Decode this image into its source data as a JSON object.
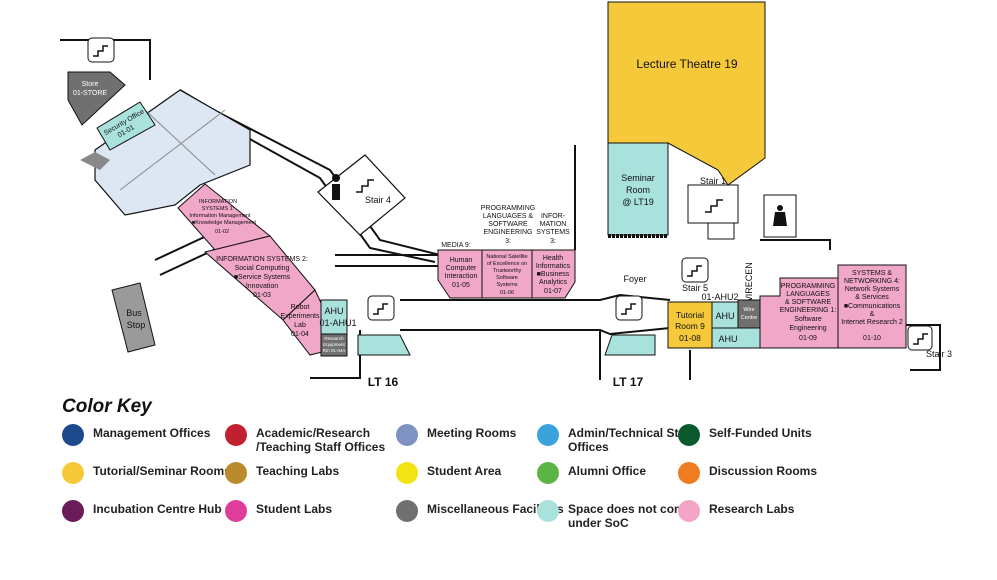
{
  "map": {
    "rooms": {
      "store": [
        "Store",
        "01-STORE"
      ],
      "security": [
        "Security Office",
        "01-01"
      ],
      "is1": [
        "INFORMATION",
        "SYSTEMS 1:",
        "Information Management",
        "■Knowledge Management",
        "01-02"
      ],
      "is2": [
        "INFORMATION SYSTEMS 2:",
        "Social Computing",
        "■Service Systems",
        "Innovation",
        "01-03"
      ],
      "robot": [
        "Robot",
        "Experiments",
        "Lab",
        "01-04"
      ],
      "ahu1": [
        "AHU",
        "01-AHU1"
      ],
      "research_eq": [
        "Research",
        "Equipment",
        "Rm 01-04A"
      ],
      "media9_label": "MEDIA 9:",
      "media9": [
        "Human",
        "Computer",
        "Interaction",
        "01-05"
      ],
      "pl3_label": [
        "PROGRAMMING",
        "LANGUAGES &",
        "SOFTWARE",
        "ENGINEERING",
        "3:"
      ],
      "pl3": [
        "National Satellite",
        "of Excellence on",
        "Trustworthy",
        "Software",
        "Systems",
        "01-06"
      ],
      "is3_label": [
        "INFOR-",
        "MATION",
        "SYSTEMS",
        "3:"
      ],
      "is3": [
        "Health",
        "Informatics",
        "■Business",
        "Analytics",
        "01-07"
      ],
      "lt19": "Lecture Theatre 19",
      "seminar": [
        "Seminar",
        "Room",
        "@ LT19"
      ],
      "foyer": "Foyer",
      "stair1": "Stair 1",
      "stair3": "Stair 3",
      "stair4": "Stair 4",
      "stair5": "Stair 5",
      "ahu2": "01-AHU2",
      "wirecen": "01-WIRECEN",
      "tutorial9": [
        "Tutorial",
        "Room 9",
        "01-08"
      ],
      "ahu_a": "AHU",
      "ahu_b": "AHU",
      "wire_centre": [
        "Wire",
        "Centre"
      ],
      "pl1": [
        "PROGRAMMING",
        "LANGUAGES",
        "& SOFTWARE",
        "ENGINEERING 1:",
        "Software",
        "Engineering",
        "01-09"
      ],
      "sn4": [
        "SYSTEMS &",
        "NETWORKING 4:",
        "Network Systems",
        "& Services",
        "■Communications",
        "&",
        "Internet Research 2",
        "01-10"
      ],
      "bus": [
        "Bus",
        "Stop"
      ],
      "lt16": "LT 16",
      "lt17": "LT 17"
    }
  },
  "legend": {
    "title": "Color Key",
    "items": [
      {
        "label": "Management Offices",
        "color": "#1c4a8c"
      },
      {
        "label": "Academic/Research /Teaching Staff Offices",
        "color": "#c0202f"
      },
      {
        "label": "Meeting Rooms",
        "color": "#7f92c2"
      },
      {
        "label": "Admin/Technical Staff Offices",
        "color": "#3aa3dc"
      },
      {
        "label": "Self-Funded Units",
        "color": "#0b5a2e"
      },
      {
        "label": "Tutorial/Seminar Rooms",
        "color": "#f5c938"
      },
      {
        "label": "Teaching Labs",
        "color": "#b98b2e"
      },
      {
        "label": "Student Area",
        "color": "#f4e314"
      },
      {
        "label": "Alumni Office",
        "color": "#5bb544"
      },
      {
        "label": "Discussion Rooms",
        "color": "#ee7d22"
      },
      {
        "label": "Incubation Centre Hub",
        "color": "#6b1a5b"
      },
      {
        "label": "Student  Labs",
        "color": "#e03c9b"
      },
      {
        "label": "Miscellaneous Facilities",
        "color": "#707070"
      },
      {
        "label": "Space does not come under SoC",
        "color": "#a9e1dc"
      },
      {
        "label": "Research Labs",
        "color": "#f4a5c6"
      }
    ]
  },
  "colors": {
    "pink": "#f1a7c7",
    "teal": "#a9e1dc",
    "yellow": "#f5c93a",
    "lightblue": "#dde6f3",
    "gray": "#707070"
  }
}
